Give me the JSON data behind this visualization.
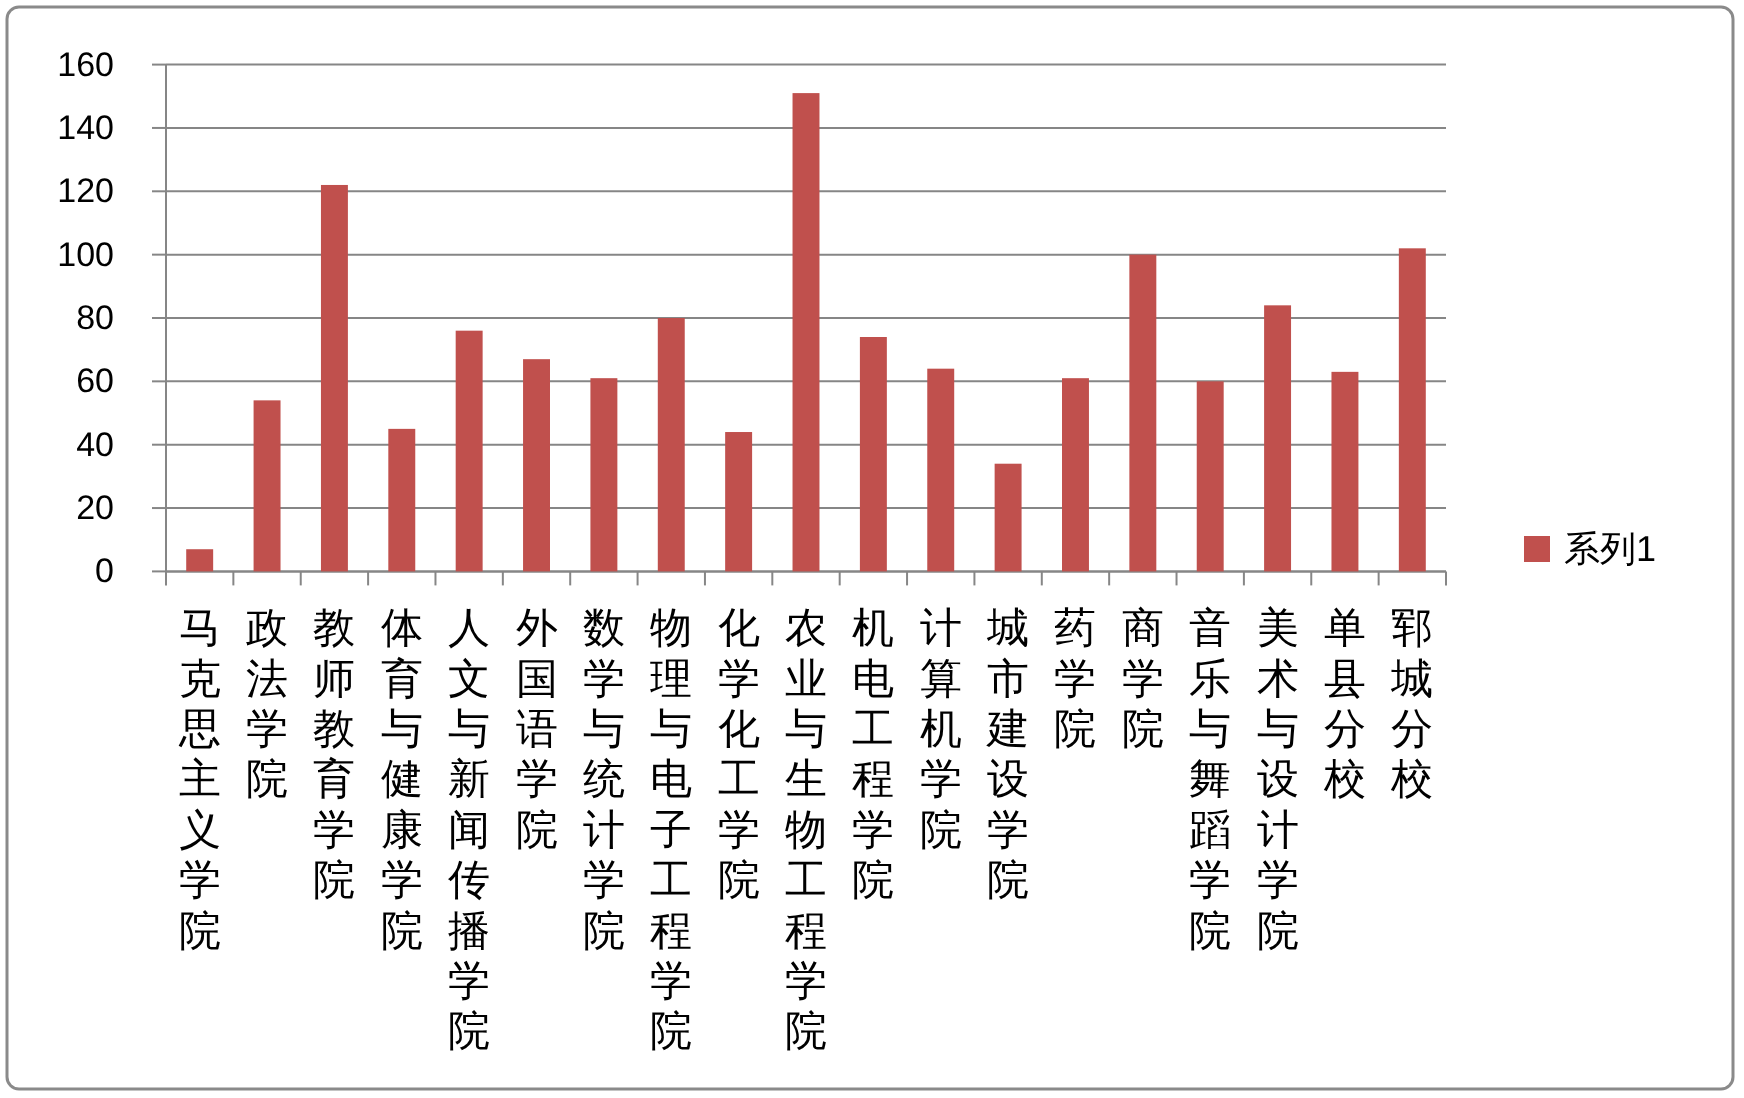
{
  "chart_data": {
    "type": "bar",
    "categories": [
      "马克思主义学院",
      "政法学院",
      "教师教育学院",
      "体育与健康学院",
      "人文与新闻传播学院",
      "外国语学院",
      "数学与统计学院",
      "物理与电子工程学院",
      "化学化工学院",
      "农业与生物工程学院",
      "机电工程学院",
      "计算机学院",
      "城市建设学院",
      "药学院",
      "商学院",
      "音乐与舞蹈学院",
      "美术与设计学院",
      "单县分校",
      "郓城分校"
    ],
    "series": [
      {
        "name": "系列1",
        "color": "#c0504d",
        "values": [
          7,
          54,
          122,
          45,
          76,
          67,
          61,
          80,
          44,
          151,
          74,
          64,
          34,
          61,
          100,
          60,
          84,
          63,
          102
        ]
      }
    ],
    "ylim": [
      0,
      160
    ],
    "yticks": [
      0,
      20,
      40,
      60,
      80,
      100,
      120,
      140,
      160
    ],
    "grid": "y",
    "legend": "right"
  }
}
